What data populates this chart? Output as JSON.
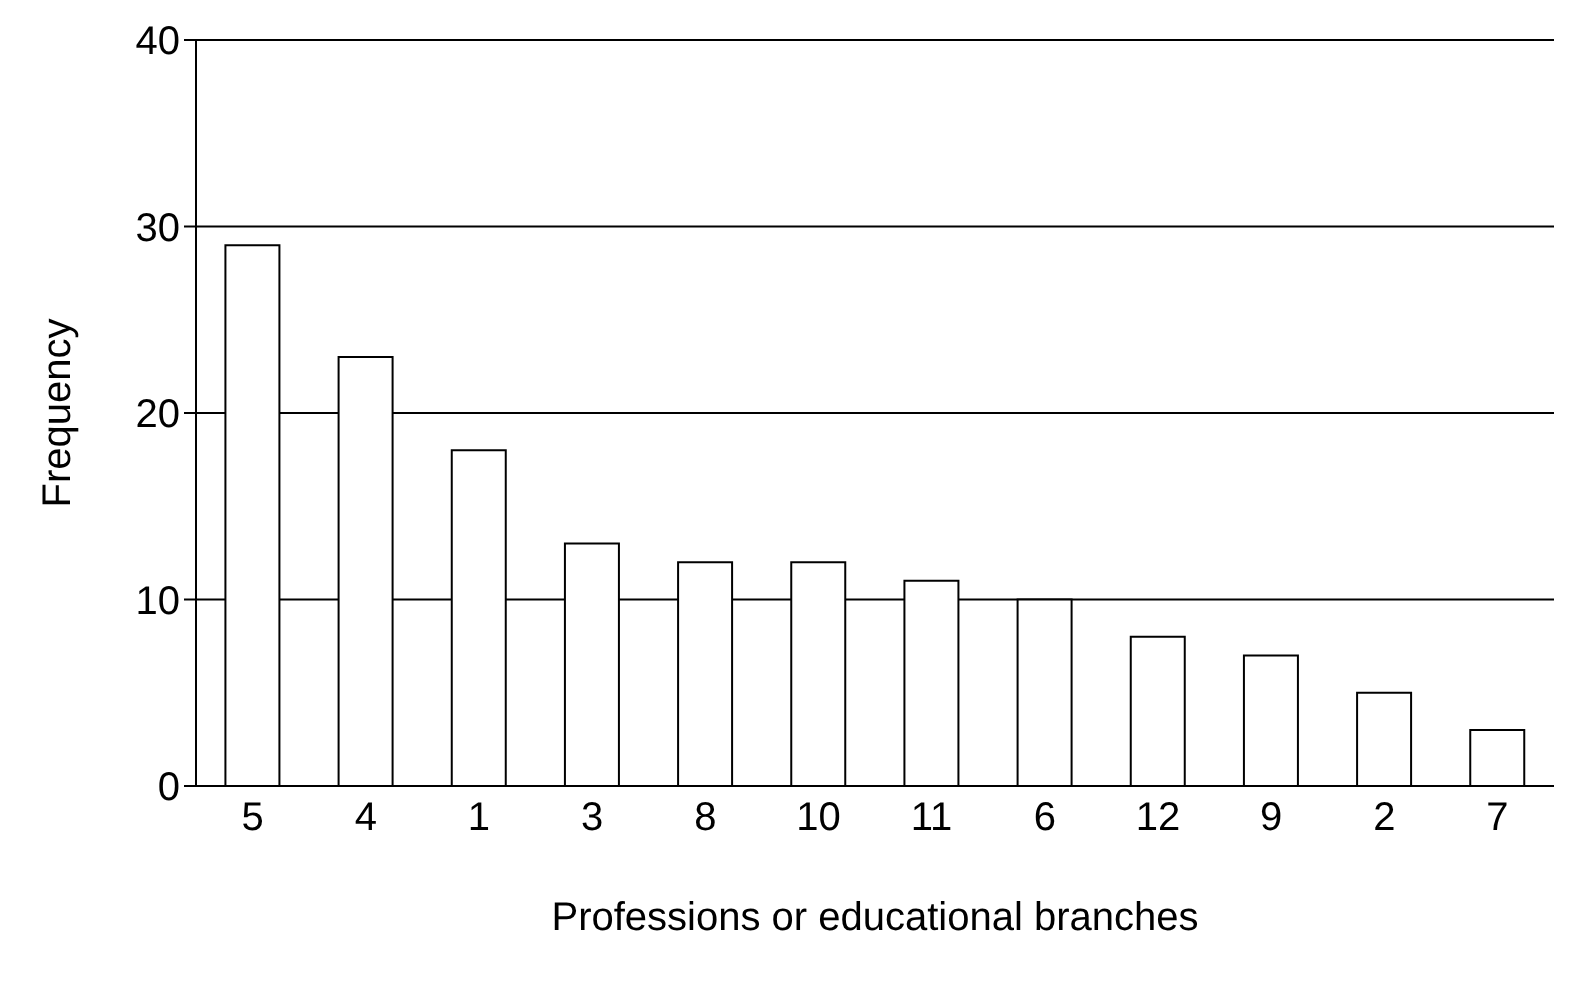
{
  "chart_data": {
    "type": "bar",
    "xlabel": "Professions or educational branches",
    "ylabel": "Frequency",
    "categories": [
      "5",
      "4",
      "1",
      "3",
      "8",
      "10",
      "11",
      "6",
      "12",
      "9",
      "2",
      "7"
    ],
    "values": [
      29,
      23,
      18,
      13,
      12,
      12,
      11,
      10,
      8,
      7,
      5,
      3
    ],
    "color": "#ffffff",
    "ylim": [
      0,
      40
    ],
    "yticks": [
      0,
      10,
      20,
      30,
      40
    ],
    "grid": "y"
  }
}
